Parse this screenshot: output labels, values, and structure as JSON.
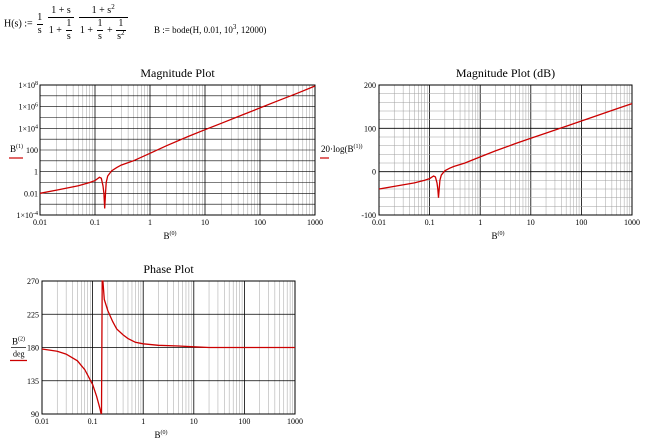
{
  "equations": {
    "tf_lhs": "H(s) :=",
    "tf_coef_num": "1",
    "tf_coef_den": "s",
    "tf_f1_num": "1 + s",
    "tf_f1_den_a": "1 +",
    "tf_f1_den_b_num": "1",
    "tf_f1_den_b_den": "s",
    "tf_f2_num": "1 + s",
    "tf_f2_num_exp": "2",
    "tf_f2_den_a": "1 +",
    "tf_f2_den_b_num": "1",
    "tf_f2_den_b_den": "s",
    "tf_f2_den_plus": "+",
    "tf_f2_den_c_num": "1",
    "tf_f2_den_c_den": "s",
    "tf_f2_den_c_exp": "2",
    "bode_text_a": "B := bode(H, 0.01, 10",
    "bode_exp": "3",
    "bode_text_b": ", 12000)"
  },
  "colors": {
    "curve": "#cc0000",
    "grid": "#a0a0a0",
    "major_grid": "#000000",
    "label_marker": "#cc0000"
  },
  "chart_data": [
    {
      "type": "line",
      "title": "Magnitude Plot",
      "x": [
        0.01,
        0.02,
        0.05,
        0.08,
        0.1,
        0.12,
        0.13,
        0.14,
        0.145,
        0.15,
        0.155,
        0.16,
        0.17,
        0.2,
        0.25,
        0.3,
        0.5,
        1,
        2,
        5,
        10,
        20,
        50,
        100,
        200,
        500,
        1000
      ],
      "series": [
        {
          "values": [
            0.01,
            0.02,
            0.05,
            0.1,
            0.15,
            0.3,
            0.25,
            0.05,
            0.01,
            0.0004,
            0.01,
            0.1,
            0.4,
            1.2,
            2.5,
            4,
            10,
            50,
            250,
            1800,
            7500,
            30000,
            190000,
            770000,
            3100000,
            19000000,
            80000000
          ]
        }
      ],
      "xscale": "log",
      "yscale": "log",
      "xlim": [
        0.01,
        1000
      ],
      "ylim": [
        0.0001,
        100000000
      ],
      "xticks": [
        "0.01",
        "0.1",
        "1",
        "10",
        "100",
        "1000"
      ],
      "yticks_vals": [
        0.0001,
        0.01,
        1,
        100,
        10000,
        1000000,
        100000000
      ],
      "ytick_base": [
        "1×10",
        "0.01",
        "1",
        "100",
        "1×10",
        "1×10",
        "1×10"
      ],
      "ytick_exp": [
        "-4",
        "",
        "",
        "",
        "4",
        "6",
        "8"
      ],
      "xlabel": "B",
      "xlabel_sup": "(0)",
      "ylabel": "B",
      "ylabel_sup": "(1)",
      "grid": true
    },
    {
      "type": "line",
      "title": "Magnitude Plot (dB)",
      "x": [
        0.01,
        0.02,
        0.05,
        0.08,
        0.1,
        0.12,
        0.13,
        0.14,
        0.145,
        0.15,
        0.155,
        0.16,
        0.17,
        0.2,
        0.25,
        0.3,
        0.5,
        1,
        2,
        5,
        10,
        20,
        50,
        100,
        200,
        500,
        1000
      ],
      "series": [
        {
          "values": [
            -40,
            -34,
            -26,
            -20,
            -16,
            -10,
            -12,
            -26,
            -40,
            -60,
            -40,
            -20,
            -8,
            2,
            8,
            12,
            20,
            34,
            48,
            65,
            77,
            89,
            105,
            117,
            129,
            145,
            157
          ]
        }
      ],
      "xscale": "log",
      "yscale": "linear",
      "xlim": [
        0.01,
        1000
      ],
      "ylim": [
        -100,
        200
      ],
      "xticks": [
        "0.01",
        "0.1",
        "1",
        "10",
        "100",
        "1000"
      ],
      "yticks": [
        -100,
        0,
        100,
        200
      ],
      "xlabel": "B",
      "xlabel_sup": "(0)",
      "ylabel": "20·log",
      "ylabel_inner": "B",
      "ylabel_sup": "(1)",
      "grid": true
    },
    {
      "type": "line",
      "title": "Phase Plot",
      "x": [
        0.01,
        0.02,
        0.03,
        0.05,
        0.07,
        0.1,
        0.12,
        0.14,
        0.145,
        0.15,
        0.155,
        0.16,
        0.17,
        0.2,
        0.25,
        0.3,
        0.4,
        0.5,
        0.7,
        1,
        2,
        5,
        10,
        20,
        100,
        1000
      ],
      "series": [
        {
          "values": [
            178,
            175,
            171,
            162,
            150,
            130,
            114,
            97,
            92,
            90,
            270,
            270,
            245,
            230,
            215,
            205,
            197,
            192,
            187,
            185,
            183,
            182,
            181,
            180,
            180,
            180
          ]
        }
      ],
      "xscale": "log",
      "yscale": "linear",
      "xlim": [
        0.01,
        1000
      ],
      "ylim": [
        90,
        270
      ],
      "xticks": [
        "0.01",
        "0.1",
        "1",
        "10",
        "100",
        "1000"
      ],
      "yticks": [
        90,
        135,
        180,
        225,
        270
      ],
      "xlabel": "B",
      "xlabel_sup": "(0)",
      "ylabel": "B",
      "ylabel_sup": "(2)",
      "ylabel_den": "deg",
      "grid": true
    }
  ]
}
